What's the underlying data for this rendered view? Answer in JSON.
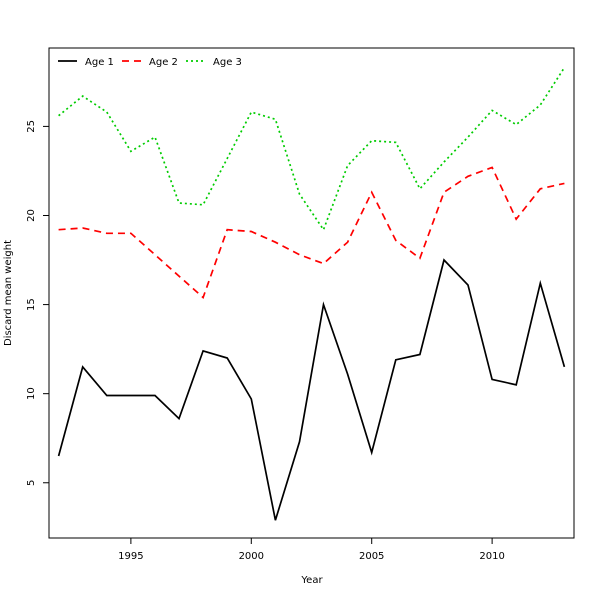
{
  "chart_data": {
    "type": "line",
    "xlabel": "Year",
    "ylabel": "Discard mean weight",
    "xlim": [
      1991.6,
      2013.4
    ],
    "ylim": [
      1.9,
      29.4
    ],
    "x_ticks": [
      1995,
      2000,
      2005,
      2010
    ],
    "y_ticks": [
      5,
      10,
      15,
      20,
      25
    ],
    "grid": false,
    "legend_position": "top-left",
    "x": [
      1992,
      1993,
      1994,
      1995,
      1996,
      1997,
      1998,
      1999,
      2000,
      2001,
      2002,
      2003,
      2004,
      2005,
      2006,
      2007,
      2008,
      2009,
      2010,
      2011,
      2012,
      2013
    ],
    "series": [
      {
        "name": "Age 1",
        "color": "#000000",
        "dash": "solid",
        "values": [
          6.5,
          11.5,
          9.9,
          9.9,
          9.9,
          8.6,
          12.4,
          12.0,
          9.7,
          2.9,
          7.3,
          15.0,
          11.1,
          6.7,
          11.9,
          12.2,
          17.5,
          16.1,
          10.8,
          10.5,
          16.2,
          11.5
        ]
      },
      {
        "name": "Age 2",
        "color": "#ff0000",
        "dash": "dashed",
        "values": [
          19.2,
          19.3,
          19.0,
          19.0,
          17.8,
          16.6,
          15.4,
          19.2,
          19.1,
          18.5,
          17.8,
          17.3,
          18.5,
          21.3,
          18.6,
          17.6,
          21.3,
          22.2,
          22.7,
          19.8,
          21.5,
          21.8
        ]
      },
      {
        "name": "Age 3",
        "color": "#00cc00",
        "dash": "dotted",
        "values": [
          25.6,
          26.7,
          25.8,
          23.6,
          24.4,
          20.7,
          20.6,
          23.2,
          25.8,
          25.4,
          21.2,
          19.2,
          22.8,
          24.2,
          24.1,
          21.5,
          23.0,
          24.4,
          25.9,
          25.1,
          26.2,
          28.3
        ]
      }
    ]
  }
}
